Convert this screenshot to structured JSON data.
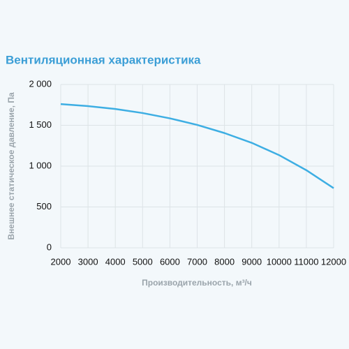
{
  "chart_data": {
    "type": "line",
    "title": "Вентиляционная характеристика",
    "x_label": "Производительность, м³/ч",
    "y_label": "Внешнее статическое давление, Па",
    "x": [
      2000,
      3000,
      4000,
      5000,
      6000,
      7000,
      8000,
      9000,
      10000,
      11000,
      12000
    ],
    "series": [
      {
        "name": "Вентиляционная характеристика",
        "color": "#3daee3",
        "values": [
          1760,
          1735,
          1700,
          1650,
          1585,
          1505,
          1405,
          1285,
          1135,
          950,
          730
        ]
      }
    ],
    "xlim": [
      2000,
      12000
    ],
    "xticks": [
      2000,
      3000,
      4000,
      5000,
      6000,
      7000,
      8000,
      9000,
      10000,
      11000,
      12000
    ],
    "ylim": [
      0,
      2000
    ],
    "yticks": [
      0,
      500,
      {
        "value": 1000,
        "label": "1 000"
      },
      {
        "value": 1500,
        "label": "1 500"
      },
      {
        "value": 2000,
        "label": "2 000"
      }
    ],
    "grid": true
  }
}
